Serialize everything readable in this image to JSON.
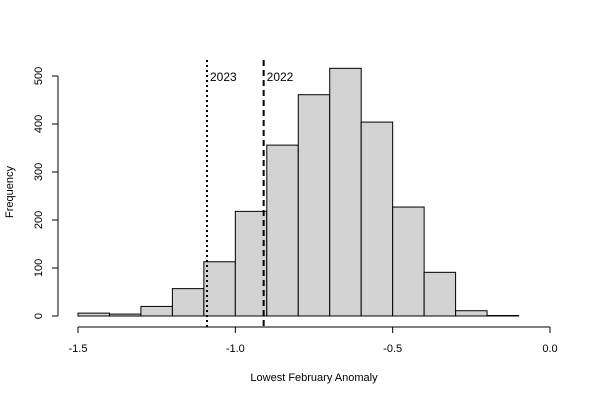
{
  "chart_data": {
    "type": "bar",
    "subtype": "histogram",
    "xlabel": "Lowest February Anomaly",
    "ylabel": "Frequency",
    "xlim": [
      -1.5,
      0.0
    ],
    "ylim": [
      0,
      500
    ],
    "xticks": [
      -1.5,
      -1.0,
      -0.5,
      0.0
    ],
    "xtick_labels": [
      "-1.5",
      "-1.0",
      "-0.5",
      "0.0"
    ],
    "yticks": [
      0,
      100,
      200,
      300,
      400,
      500
    ],
    "ytick_labels": [
      "0",
      "100",
      "200",
      "300",
      "400",
      "500"
    ],
    "bin_width": 0.1,
    "bins": [
      {
        "from": -1.5,
        "to": -1.4,
        "count": 6
      },
      {
        "from": -1.4,
        "to": -1.3,
        "count": 4
      },
      {
        "from": -1.3,
        "to": -1.2,
        "count": 20
      },
      {
        "from": -1.2,
        "to": -1.1,
        "count": 57
      },
      {
        "from": -1.1,
        "to": -1.0,
        "count": 113
      },
      {
        "from": -1.0,
        "to": -0.9,
        "count": 218
      },
      {
        "from": -0.9,
        "to": -0.8,
        "count": 356
      },
      {
        "from": -0.8,
        "to": -0.7,
        "count": 461
      },
      {
        "from": -0.7,
        "to": -0.6,
        "count": 516
      },
      {
        "from": -0.6,
        "to": -0.5,
        "count": 404
      },
      {
        "from": -0.5,
        "to": -0.4,
        "count": 227
      },
      {
        "from": -0.4,
        "to": -0.3,
        "count": 91
      },
      {
        "from": -0.3,
        "to": -0.2,
        "count": 11
      },
      {
        "from": -0.2,
        "to": -0.1,
        "count": 1
      }
    ],
    "reference_lines": [
      {
        "label": "2023",
        "x": -1.09,
        "style": "dotted"
      },
      {
        "label": "2022",
        "x": -0.91,
        "style": "dashed"
      }
    ],
    "bar_fill": "#d3d3d3",
    "bar_stroke": "#000000",
    "grid": false
  }
}
